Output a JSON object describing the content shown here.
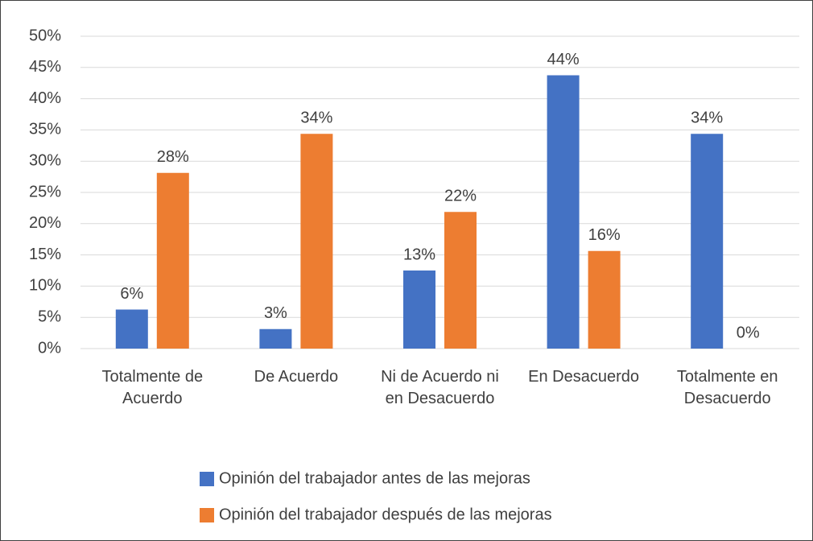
{
  "chart_data": {
    "type": "bar",
    "categories": [
      "Totalmente de Acuerdo",
      "De Acuerdo",
      "Ni de Acuerdo ni en Desacuerdo",
      "En Desacuerdo",
      "Totalmente en Desacuerdo"
    ],
    "series": [
      {
        "name": "Opinión del trabajador antes de las mejoras",
        "color": "#4472c4",
        "values": [
          6.25,
          3.125,
          12.5,
          43.75,
          34.375
        ],
        "value_labels": [
          "6%",
          "3%",
          "13%",
          "44%",
          "34%"
        ]
      },
      {
        "name": "Opinión del trabajador después de las mejoras",
        "color": "#ed7d31",
        "values": [
          28.125,
          34.375,
          21.875,
          15.625,
          0
        ],
        "value_labels": [
          "28%",
          "34%",
          "22%",
          "16%",
          "0%"
        ]
      }
    ],
    "ylim": [
      0,
      50
    ],
    "yticks": [
      {
        "value": 0,
        "label": "0%"
      },
      {
        "value": 5,
        "label": "5%"
      },
      {
        "value": 10,
        "label": "10%"
      },
      {
        "value": 15,
        "label": "15%"
      },
      {
        "value": 20,
        "label": "20%"
      },
      {
        "value": 25,
        "label": "25%"
      },
      {
        "value": 30,
        "label": "30%"
      },
      {
        "value": 35,
        "label": "35%"
      },
      {
        "value": 40,
        "label": "40%"
      },
      {
        "value": 45,
        "label": "45%"
      },
      {
        "value": 50,
        "label": "50%"
      }
    ],
    "grid": true,
    "legend": "bottom"
  }
}
